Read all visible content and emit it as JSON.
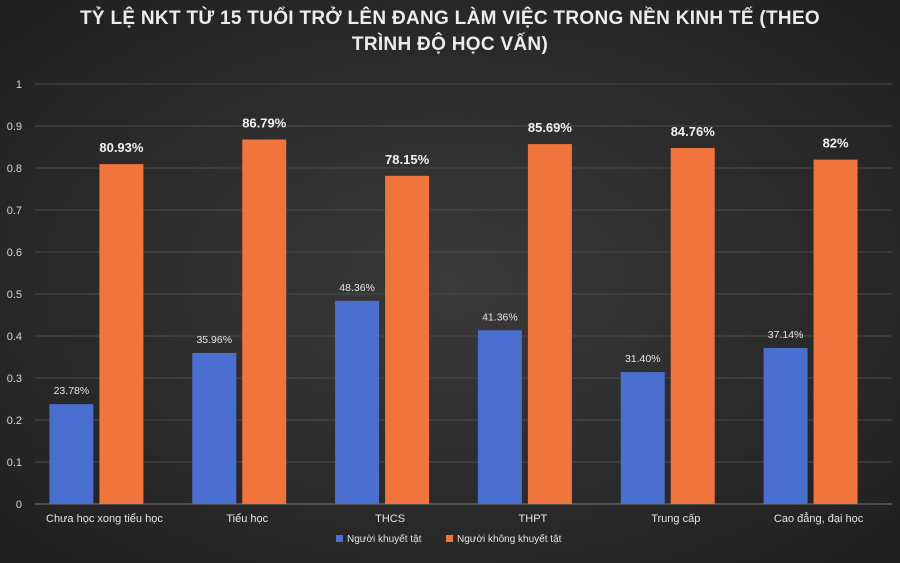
{
  "chart_data": {
    "type": "bar",
    "title_line1": "TỶ LỆ NKT TỪ 15 TUỔI TRỞ LÊN ĐANG LÀM VIỆC TRONG NỀN KINH TẾ (THEO",
    "title_line2": "TRÌNH ĐỘ HỌC VẤN)",
    "categories": [
      "Chưa học xong tiểu học",
      "Tiểu học",
      "THCS",
      "THPT",
      "Trung cấp",
      "Cao đẳng, đại học"
    ],
    "series": [
      {
        "name": "Người khuyết tật",
        "color": "#4a6fd0",
        "values": [
          0.2378,
          0.3596,
          0.4836,
          0.4136,
          0.314,
          0.3714
        ],
        "labels": [
          "23.78%",
          "35.96%",
          "48.36%",
          "41.36%",
          "31.40%",
          "37.14%"
        ]
      },
      {
        "name": "Người không khuyết tật",
        "color": "#f0743c",
        "values": [
          0.8093,
          0.8679,
          0.7815,
          0.8569,
          0.8476,
          0.82
        ],
        "labels": [
          "80.93%",
          "86.79%",
          "78.15%",
          "85.69%",
          "84.76%",
          "82%"
        ]
      }
    ],
    "y_ticks": [
      "0",
      "0.1",
      "0.2",
      "0.3",
      "0.4",
      "0.5",
      "0.6",
      "0.7",
      "0.8",
      "0.9",
      "1"
    ],
    "ylim": [
      0,
      1
    ],
    "grid": true,
    "legend_position": "bottom"
  }
}
